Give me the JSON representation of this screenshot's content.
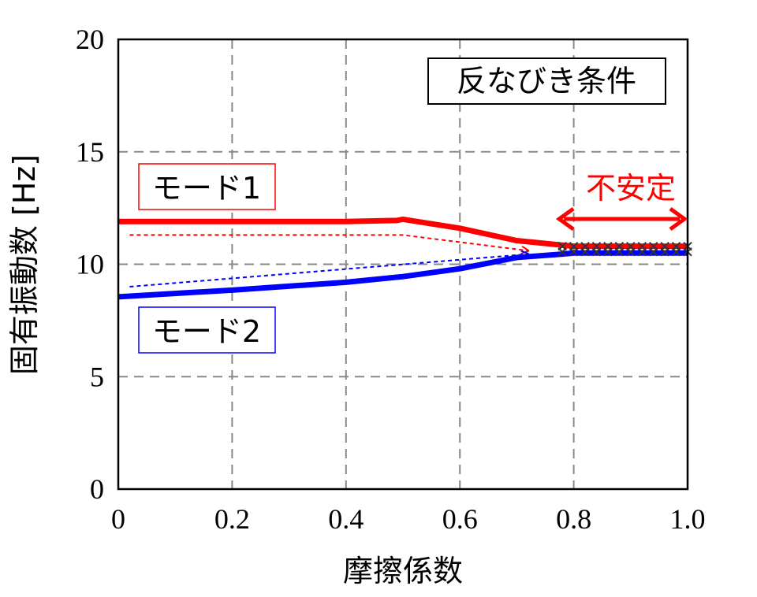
{
  "chart_data": {
    "type": "line",
    "title": "",
    "xlabel": "摩擦係数",
    "ylabel": "固有振動数 [Hz]",
    "xlim": [
      0,
      1.0
    ],
    "ylim": [
      0,
      20
    ],
    "x_ticks": [
      "0",
      "0.2",
      "0.4",
      "0.6",
      "0.8",
      "1.0"
    ],
    "y_ticks": [
      "0",
      "5",
      "10",
      "15",
      "20"
    ],
    "grid": true,
    "series": [
      {
        "name": "モード1",
        "color": "#ff0000",
        "x": [
          0,
          0.2,
          0.4,
          0.49,
          0.5,
          0.6,
          0.7,
          0.78,
          0.8,
          0.9,
          1.0
        ],
        "y": [
          11.9,
          11.9,
          11.9,
          11.95,
          12.0,
          11.6,
          11.05,
          10.85,
          10.8,
          10.8,
          10.8
        ]
      },
      {
        "name": "モード2",
        "color": "#0000ff",
        "x": [
          0,
          0.2,
          0.4,
          0.5,
          0.6,
          0.7,
          0.78,
          0.8,
          0.9,
          1.0
        ],
        "y": [
          8.55,
          8.85,
          9.2,
          9.45,
          9.8,
          10.3,
          10.45,
          10.5,
          10.5,
          10.5
        ]
      }
    ],
    "unstable_markers": {
      "x": [
        0.78,
        0.8,
        0.82,
        0.84,
        0.86,
        0.88,
        0.9,
        0.92,
        0.94,
        0.96,
        0.98,
        1.0
      ],
      "y_top": 10.8,
      "y_bottom": 10.55
    },
    "annotations": {
      "condition_label": "反なびき条件",
      "unstable_label": "不安定",
      "unstable_range": [
        0.78,
        1.0
      ],
      "mode1_label": "モード1",
      "mode2_label": "モード2",
      "mode1_trend": {
        "x": [
          0.02,
          0.5,
          0.72
        ],
        "y": [
          11.3,
          11.3,
          10.6
        ]
      },
      "mode2_trend": {
        "x": [
          0.02,
          0.72
        ],
        "y": [
          9.0,
          10.45
        ]
      }
    }
  }
}
